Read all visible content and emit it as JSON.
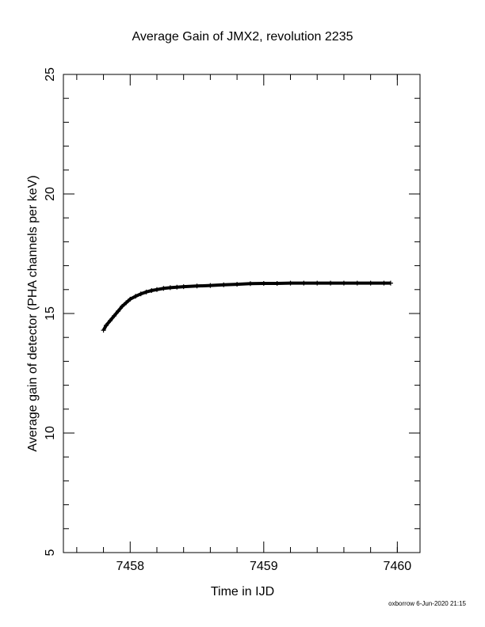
{
  "chart_data": {
    "type": "scatter",
    "title": "Average Gain of JMX2, revolution 2235",
    "x_label": "Time in IJD",
    "y_label": "Average gain of detector (PHA channels per keV)",
    "footer": "oxborrow  6-Jun-2020 21:15",
    "marker": "+",
    "color": "#000000",
    "x": [
      7457.8,
      7457.82,
      7457.85,
      7457.88,
      7457.91,
      7457.94,
      7457.97,
      7458.0,
      7458.04,
      7458.08,
      7458.12,
      7458.16,
      7458.2,
      7458.25,
      7458.3,
      7458.35,
      7458.4,
      7458.5,
      7458.6,
      7458.7,
      7458.8,
      7458.9,
      7459.0,
      7459.1,
      7459.2,
      7459.3,
      7459.4,
      7459.5,
      7459.6,
      7459.7,
      7459.8,
      7459.9,
      7459.95
    ],
    "values": [
      14.3,
      14.5,
      14.7,
      14.9,
      15.1,
      15.3,
      15.45,
      15.6,
      15.72,
      15.82,
      15.9,
      15.96,
      16.0,
      16.05,
      16.08,
      16.1,
      16.12,
      16.15,
      16.17,
      16.2,
      16.22,
      16.25,
      16.26,
      16.26,
      16.27,
      16.27,
      16.27,
      16.27,
      16.27,
      16.27,
      16.27,
      16.27,
      16.27
    ],
    "xlim": [
      7457.5,
      7460.17
    ],
    "ylim": [
      5,
      25
    ],
    "xticks": [
      7458,
      7459,
      7460
    ],
    "yticks": [
      5,
      10,
      15,
      20,
      25
    ],
    "xminorticks": [
      7457.6,
      7457.8,
      7458.2,
      7458.4,
      7458.6,
      7458.8,
      7459.2,
      7459.4,
      7459.6,
      7459.8,
      7460.0
    ],
    "yminorticks": [
      6,
      7,
      8,
      9,
      11,
      12,
      13,
      14,
      16,
      17,
      18,
      19,
      21,
      22,
      23,
      24
    ]
  }
}
